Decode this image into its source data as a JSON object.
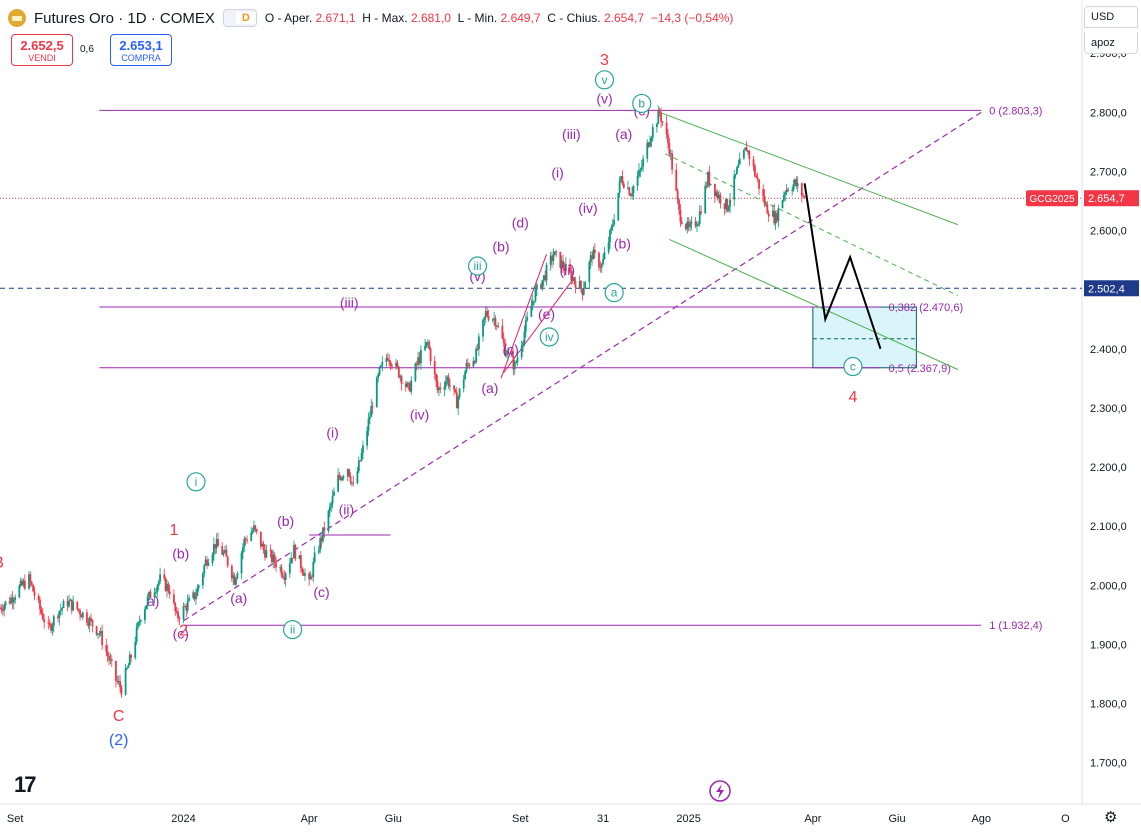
{
  "header": {
    "symbol": "Futures Oro · 1D · COMEX",
    "badge_left": "",
    "badge_d": "D",
    "ohlc": {
      "o_label": "O - Aper.",
      "o_value": "2.671,1",
      "h_label": "H - Max.",
      "h_value": "2.681,0",
      "l_label": "L - Min.",
      "l_value": "2.649,7",
      "c_label": "C - Chius.",
      "c_value": "2.654,7",
      "change": "−14,3 (−0,54%)"
    },
    "colors": {
      "down": "#f23645",
      "up": "#089981"
    }
  },
  "trade": {
    "sell_price": "2.652,5",
    "sell_label": "VENDI",
    "spread": "0,6",
    "buy_price": "2.653,1",
    "buy_label": "COMPRA"
  },
  "controls": {
    "currency": "USD",
    "scale": "apoz"
  },
  "bottom": {
    "logo": "17",
    "settings_icon": "gear-icon"
  },
  "chart_data": {
    "type": "candlestick",
    "ylim": [
      1630,
      2990
    ],
    "x_range": [
      "2023-08-21",
      "2025-10-13"
    ],
    "y_ticks": [
      "2.900,0",
      "2.800,0",
      "2.700,0",
      "2.600,0",
      "2.500,0",
      "2.400,0",
      "2.300,0",
      "2.200,0",
      "2.100,0",
      "2.000,0",
      "1.900,0",
      "1.800,0",
      "1.700,0"
    ],
    "y_tick_values": [
      2900,
      2800,
      2700,
      2600,
      2500,
      2400,
      2300,
      2200,
      2100,
      2000,
      1900,
      1800,
      1700
    ],
    "x_ticks": [
      {
        "label": "Set",
        "date": "2023-09-01"
      },
      {
        "label": "2024",
        "date": "2024-01-01"
      },
      {
        "label": "Apr",
        "date": "2024-04-01"
      },
      {
        "label": "Giu",
        "date": "2024-06-01"
      },
      {
        "label": "Set",
        "date": "2024-09-01"
      },
      {
        "label": "31",
        "date": "2024-10-31"
      },
      {
        "label": "2025",
        "date": "2025-01-01"
      },
      {
        "label": "Apr",
        "date": "2025-04-01"
      },
      {
        "label": "Giu",
        "date": "2025-06-01"
      },
      {
        "label": "Ago",
        "date": "2025-08-01"
      },
      {
        "label": "O",
        "date": "2025-10-01"
      }
    ],
    "price_path": [
      [
        "2023-08-21",
        1962
      ],
      [
        "2023-08-28",
        1975
      ],
      [
        "2023-09-04",
        1995
      ],
      [
        "2023-09-11",
        2010
      ],
      [
        "2023-09-18",
        1965
      ],
      [
        "2023-09-25",
        1925
      ],
      [
        "2023-10-02",
        1955
      ],
      [
        "2023-10-09",
        1972
      ],
      [
        "2023-10-16",
        1960
      ],
      [
        "2023-10-23",
        1945
      ],
      [
        "2023-11-01",
        1920
      ],
      [
        "2023-11-08",
        1875
      ],
      [
        "2023-11-13",
        1840
      ],
      [
        "2023-11-17",
        1825
      ],
      [
        "2023-11-24",
        1880
      ],
      [
        "2023-12-01",
        1950
      ],
      [
        "2023-12-08",
        1985
      ],
      [
        "2023-12-15",
        2010
      ],
      [
        "2023-12-22",
        1992
      ],
      [
        "2023-12-27",
        1945
      ],
      [
        "2024-01-03",
        1965
      ],
      [
        "2024-01-10",
        1985
      ],
      [
        "2024-01-17",
        2040
      ],
      [
        "2024-01-24",
        2070
      ],
      [
        "2024-01-31",
        2050
      ],
      [
        "2024-02-07",
        2010
      ],
      [
        "2024-02-14",
        2075
      ],
      [
        "2024-02-21",
        2095
      ],
      [
        "2024-02-28",
        2060
      ],
      [
        "2024-03-07",
        2040
      ],
      [
        "2024-03-14",
        2020
      ],
      [
        "2024-03-21",
        2060
      ],
      [
        "2024-03-28",
        2025
      ],
      [
        "2024-04-01",
        2000
      ],
      [
        "2024-04-05",
        2045
      ],
      [
        "2024-04-10",
        2080
      ],
      [
        "2024-04-15",
        2120
      ],
      [
        "2024-04-22",
        2180
      ],
      [
        "2024-04-29",
        2200
      ],
      [
        "2024-05-03",
        2165
      ],
      [
        "2024-05-10",
        2230
      ],
      [
        "2024-05-17",
        2310
      ],
      [
        "2024-05-22",
        2360
      ],
      [
        "2024-05-28",
        2390
      ],
      [
        "2024-06-05",
        2360
      ],
      [
        "2024-06-12",
        2330
      ],
      [
        "2024-06-19",
        2380
      ],
      [
        "2024-06-26",
        2410
      ],
      [
        "2024-07-03",
        2330
      ],
      [
        "2024-07-10",
        2350
      ],
      [
        "2024-07-17",
        2310
      ],
      [
        "2024-07-24",
        2370
      ],
      [
        "2024-07-31",
        2390
      ],
      [
        "2024-08-07",
        2460
      ],
      [
        "2024-08-14",
        2450
      ],
      [
        "2024-08-21",
        2400
      ],
      [
        "2024-08-28",
        2370
      ],
      [
        "2024-09-04",
        2430
      ],
      [
        "2024-09-11",
        2490
      ],
      [
        "2024-09-18",
        2520
      ],
      [
        "2024-09-25",
        2560
      ],
      [
        "2024-10-02",
        2540
      ],
      [
        "2024-10-09",
        2520
      ],
      [
        "2024-10-16",
        2500
      ],
      [
        "2024-10-23",
        2560
      ],
      [
        "2024-10-30",
        2540
      ],
      [
        "2024-11-06",
        2600
      ],
      [
        "2024-11-13",
        2690
      ],
      [
        "2024-11-20",
        2665
      ],
      [
        "2024-11-27",
        2700
      ],
      [
        "2024-12-04",
        2760
      ],
      [
        "2024-12-11",
        2800
      ],
      [
        "2024-12-18",
        2740
      ],
      [
        "2024-12-25",
        2630
      ],
      [
        "2025-01-01",
        2600
      ],
      [
        "2025-01-08",
        2620
      ],
      [
        "2025-01-15",
        2690
      ],
      [
        "2025-01-22",
        2660
      ],
      [
        "2025-01-29",
        2640
      ],
      [
        "2025-02-05",
        2700
      ],
      [
        "2025-02-12",
        2740
      ],
      [
        "2025-02-19",
        2690
      ],
      [
        "2025-02-26",
        2640
      ],
      [
        "2025-03-05",
        2620
      ],
      [
        "2025-03-12",
        2670
      ],
      [
        "2025-03-19",
        2680
      ],
      [
        "2025-03-26",
        2655
      ]
    ],
    "last_price": {
      "label": "GCG2025",
      "value": "2.654,7",
      "y": 2654.7
    },
    "blue_line": {
      "label": "2.502,4",
      "y": 2502.4
    },
    "fib_levels": [
      {
        "label": "0 (2.803,3)",
        "y": 2803.3,
        "from": "2023-11-01",
        "to": "2025-08-01"
      },
      {
        "label": "0,382 (2.470,6)",
        "y": 2470.6,
        "from": "2023-11-01",
        "to": "2025-05-20"
      },
      {
        "label": "0,5 (2.367,9)",
        "y": 2367.9,
        "from": "2023-11-01",
        "to": "2025-05-20"
      },
      {
        "label": "1 (1.932,4)",
        "y": 1932.4,
        "from": "2024-01-01",
        "to": "2025-08-01"
      }
    ],
    "zone": {
      "from": "2025-04-01",
      "to": "2025-06-15",
      "y_low": 2367.9,
      "y_high": 2470.6,
      "mid": 2417
    },
    "trendline_dashed": {
      "x1": "2024-01-01",
      "y1": 1940,
      "x2": "2025-08-01",
      "y2": 2800
    },
    "short_segment": {
      "x1": "2024-04-01",
      "y1": 2085,
      "x2": "2024-05-30",
      "y2": 2085
    },
    "channel_upper": {
      "x1": "2024-12-11",
      "y1": 2800,
      "x2": "2025-07-15",
      "y2": 2610
    },
    "channel_lower": {
      "x1": "2024-12-18",
      "y1": 2585,
      "x2": "2025-07-15",
      "y2": 2365
    },
    "channel_mid": {
      "x1": "2024-12-15",
      "y1": 2730,
      "x2": "2025-07-15",
      "y2": 2490
    },
    "wedge": [
      {
        "x1": "2024-08-18",
        "y1": 2350,
        "x2": "2024-09-20",
        "y2": 2560
      },
      {
        "x1": "2024-08-20",
        "y1": 2360,
        "x2": "2024-10-10",
        "y2": 2520
      }
    ],
    "projection": [
      [
        "2025-03-26",
        2680
      ],
      [
        "2025-04-10",
        2450
      ],
      [
        "2025-04-28",
        2555
      ],
      [
        "2025-05-20",
        2400
      ]
    ],
    "wave_labels": [
      {
        "text": "B",
        "x": "2023-08-20",
        "y": 2030,
        "color": "#f23645",
        "size": 16
      },
      {
        "text": "C",
        "x": "2023-11-15",
        "y": 1770,
        "color": "#f23645",
        "size": 16
      },
      {
        "text": "(2)",
        "x": "2023-11-15",
        "y": 1730,
        "color": "#2962ff",
        "size": 16
      },
      {
        "text": "1",
        "x": "2023-12-25",
        "y": 2085,
        "color": "#f23645",
        "size": 16
      },
      {
        "text": "2",
        "x": "2024-01-01",
        "y": 1915,
        "color": "#f23645",
        "size": 16
      },
      {
        "text": "3",
        "x": "2024-11-01",
        "y": 2880,
        "color": "#f23645",
        "size": 16
      },
      {
        "text": "4",
        "x": "2025-04-30",
        "y": 2310,
        "color": "#f23645",
        "size": 16
      },
      {
        "text": "(b)",
        "x": "2023-12-30",
        "y": 2045,
        "color": "#9c27b0",
        "size": 14
      },
      {
        "text": "a)",
        "x": "2023-12-10",
        "y": 1965,
        "color": "#9c27b0",
        "size": 14
      },
      {
        "text": "(a)",
        "x": "2024-02-10",
        "y": 1970,
        "color": "#9c27b0",
        "size": 14
      },
      {
        "text": "(c)",
        "x": "2023-12-30",
        "y": 1910,
        "color": "#9c27b0",
        "size": 14
      },
      {
        "text": "(b)",
        "x": "2024-03-15",
        "y": 2100,
        "color": "#9c27b0",
        "size": 14
      },
      {
        "text": "(c)",
        "x": "2024-04-10",
        "y": 1980,
        "color": "#9c27b0",
        "size": 14
      },
      {
        "text": "(ii)",
        "x": "2024-04-28",
        "y": 2120,
        "color": "#9c27b0",
        "size": 14
      },
      {
        "text": "(i)",
        "x": "2024-04-18",
        "y": 2250,
        "color": "#9c27b0",
        "size": 14
      },
      {
        "text": "(iii)",
        "x": "2024-04-30",
        "y": 2470,
        "color": "#9c27b0",
        "size": 14
      },
      {
        "text": "(iv)",
        "x": "2024-06-20",
        "y": 2280,
        "color": "#9c27b0",
        "size": 14
      },
      {
        "text": "(a)",
        "x": "2024-08-10",
        "y": 2325,
        "color": "#9c27b0",
        "size": 14
      },
      {
        "text": "(b)",
        "x": "2024-08-18",
        "y": 2565,
        "color": "#9c27b0",
        "size": 14
      },
      {
        "text": "(c)",
        "x": "2024-08-25",
        "y": 2390,
        "color": "#9c27b0",
        "size": 14
      },
      {
        "text": "(d)",
        "x": "2024-09-01",
        "y": 2605,
        "color": "#9c27b0",
        "size": 14
      },
      {
        "text": "(e)",
        "x": "2024-09-20",
        "y": 2450,
        "color": "#9c27b0",
        "size": 14
      },
      {
        "text": "(v)",
        "x": "2024-08-01",
        "y": 2515,
        "color": "#9c27b0",
        "size": 14
      },
      {
        "text": "(ii)",
        "x": "2024-10-05",
        "y": 2525,
        "color": "#9c27b0",
        "size": 14
      },
      {
        "text": "(i)",
        "x": "2024-09-28",
        "y": 2690,
        "color": "#9c27b0",
        "size": 14
      },
      {
        "text": "(iii)",
        "x": "2024-10-08",
        "y": 2755,
        "color": "#9c27b0",
        "size": 14
      },
      {
        "text": "(iv)",
        "x": "2024-10-20",
        "y": 2630,
        "color": "#9c27b0",
        "size": 14
      },
      {
        "text": "(v)",
        "x": "2024-11-01",
        "y": 2815,
        "color": "#9c27b0",
        "size": 14
      },
      {
        "text": "(a)",
        "x": "2024-11-15",
        "y": 2755,
        "color": "#9c27b0",
        "size": 14
      },
      {
        "text": "(b)",
        "x": "2024-11-14",
        "y": 2570,
        "color": "#9c27b0",
        "size": 14
      },
      {
        "text": "(c)",
        "x": "2024-11-28",
        "y": 2795,
        "color": "#9c27b0",
        "size": 14
      }
    ],
    "circle_labels": [
      {
        "text": "i",
        "x": "2024-01-10",
        "y": 2175,
        "color": "#26a69a"
      },
      {
        "text": "ii",
        "x": "2024-03-20",
        "y": 1925,
        "color": "#26a69a"
      },
      {
        "text": "iii",
        "x": "2024-08-01",
        "y": 2540,
        "color": "#26a69a"
      },
      {
        "text": "iv",
        "x": "2024-09-22",
        "y": 2420,
        "color": "#26a69a"
      },
      {
        "text": "v",
        "x": "2024-11-01",
        "y": 2855,
        "color": "#26a69a"
      },
      {
        "text": "b",
        "x": "2024-11-28",
        "y": 2815,
        "color": "#26a69a"
      },
      {
        "text": "a",
        "x": "2024-11-08",
        "y": 2495,
        "color": "#26a69a"
      },
      {
        "text": "c",
        "x": "2025-04-30",
        "y": 2370,
        "color": "#26a69a"
      }
    ]
  }
}
